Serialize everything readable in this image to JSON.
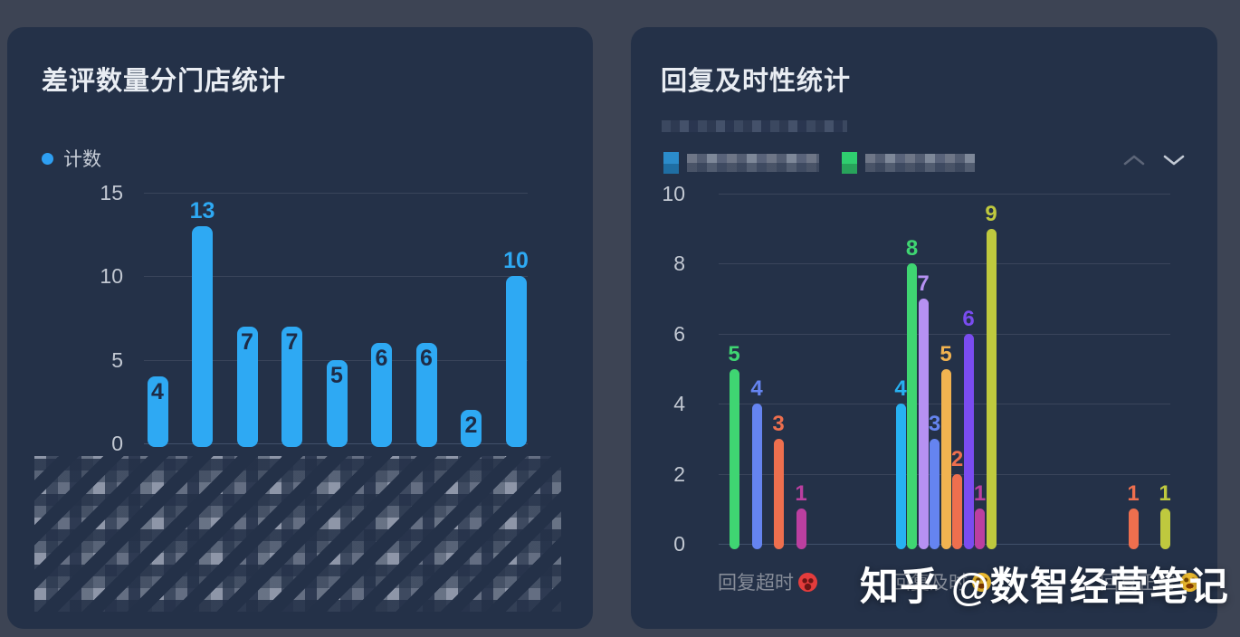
{
  "page": {
    "background_color": "#3d4454",
    "panel_color": "#243148",
    "watermark": "知乎 @数智经营笔记"
  },
  "chart_data": [
    {
      "type": "bar",
      "title": "差评数量分门店统计",
      "legend": {
        "label": "计数",
        "color": "#2ea9f3",
        "position": "top-left"
      },
      "values": [
        4,
        13,
        7,
        7,
        5,
        6,
        6,
        2,
        10
      ],
      "bar_color": "#2ea9f3",
      "inside_label_color": "#1e2c47",
      "ylim": [
        0,
        15
      ],
      "yticks": [
        0,
        5,
        10,
        15
      ],
      "grid": true,
      "x_labels": {
        "redacted": true,
        "count": 9,
        "note": "diagonal store names pixelated/censored"
      }
    },
    {
      "type": "bar",
      "title": "回复及时性统计",
      "subtitle": {
        "redacted": true
      },
      "ylim": [
        0,
        10
      ],
      "yticks": [
        0,
        2,
        4,
        6,
        8,
        10
      ],
      "grid": true,
      "series_palette": [
        "#27b1f2",
        "#3fd572",
        "#b691f2",
        "#6584f0",
        "#f2b350",
        "#ee6f4e",
        "#7a4cf0",
        "#bb3fa0",
        "#bfc93e"
      ],
      "groups": [
        {
          "category": "回复超时",
          "emoji": "😡",
          "bars": [
            {
              "color_index": 1,
              "value": 5
            },
            {
              "color_index": 3,
              "value": 4
            },
            {
              "color_index": 5,
              "value": 3
            },
            {
              "color_index": 7,
              "value": 1
            }
          ]
        },
        {
          "category": "回复及时",
          "emoji": "🤣",
          "bars": [
            {
              "color_index": 0,
              "value": 4
            },
            {
              "color_index": 1,
              "value": 8
            },
            {
              "color_index": 2,
              "value": 7
            },
            {
              "color_index": 3,
              "value": 3
            },
            {
              "color_index": 4,
              "value": 5
            },
            {
              "color_index": 5,
              "value": 2
            },
            {
              "color_index": 6,
              "value": 6
            },
            {
              "color_index": 7,
              "value": 1
            },
            {
              "color_index": 8,
              "value": 9
            }
          ]
        },
        {
          "category": "回复正常",
          "emoji": "😆",
          "bars": [
            {
              "color_index": 5,
              "value": 1
            },
            {
              "color_index": 8,
              "value": 1
            }
          ]
        }
      ],
      "legend": {
        "redacted": true,
        "items": [
          {
            "marker_color_top": "#2b8ccb",
            "marker_color_bottom": "#1f6ea3",
            "label_redacted": true
          },
          {
            "marker_color_top": "#2fce6f",
            "marker_color_bottom": "#28a35b",
            "label_redacted": true
          }
        ],
        "controls": [
          "chevron-up",
          "chevron-down"
        ]
      }
    }
  ]
}
